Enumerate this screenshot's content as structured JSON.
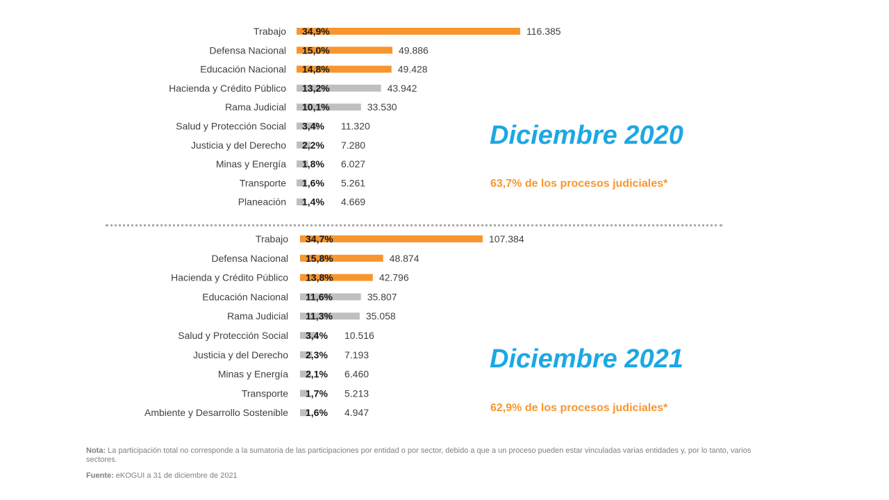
{
  "colors": {
    "highlight": "#f7962f",
    "neutral": "#bfbfbf",
    "title": "#1ca8e3",
    "subtitle": "#f7962f"
  },
  "panels": {
    "p2020": {
      "title": "Diciembre 2020",
      "subtitle": "63,7% de los procesos judiciales*"
    },
    "p2021": {
      "title": "Diciembre 2021",
      "subtitle": "62,9% de los procesos judiciales*"
    }
  },
  "notes": {
    "note_label": "Nota:",
    "note_text": " La participación total no corresponde a la sumatoria de las participaciones por entidad o por sector, debido a que a un proceso pueden estar vinculadas varias entidades y, por lo tanto, varios sectores.",
    "source_label": "Fuente:",
    "source_text": " eKOGUI a 31 de diciembre de 2021"
  },
  "chart_data": [
    {
      "type": "bar",
      "orientation": "horizontal",
      "title": "Diciembre 2020",
      "categories": [
        "Trabajo",
        "Defensa Nacional",
        "Educación Nacional",
        "Hacienda y Crédito Público",
        "Rama Judicial",
        "Salud y Protección Social",
        "Justicia y del Derecho",
        "Minas y Energía",
        "Transporte",
        "Planeación"
      ],
      "values": [
        116385,
        49886,
        49428,
        43942,
        33530,
        11320,
        7280,
        6027,
        5261,
        4669
      ],
      "value_labels": [
        "116.385",
        "49.886",
        "49.428",
        "43.942",
        "33.530",
        "11.320",
        "7.280",
        "6.027",
        "5.261",
        "4.669"
      ],
      "percent_labels": [
        "34,9%",
        "15,0%",
        "14,8%",
        "13,2%",
        "10,1%",
        "3,4%",
        "2,2%",
        "1,8%",
        "1,6%",
        "1,4%"
      ],
      "highlighted": [
        true,
        true,
        true,
        false,
        false,
        false,
        false,
        false,
        false,
        false
      ]
    },
    {
      "type": "bar",
      "orientation": "horizontal",
      "title": "Diciembre 2021",
      "categories": [
        "Trabajo",
        "Defensa Nacional",
        "Hacienda y Crédito Público",
        "Educación Nacional",
        "Rama Judicial",
        "Salud y Protección Social",
        "Justicia y del Derecho",
        "Minas y Energía",
        "Transporte",
        "Ambiente y Desarrollo Sostenible"
      ],
      "values": [
        107384,
        48874,
        42796,
        35807,
        35058,
        10516,
        7193,
        6460,
        5213,
        4947
      ],
      "value_labels": [
        "107.384",
        "48.874",
        "42.796",
        "35.807",
        "35.058",
        "10.516",
        "7.193",
        "6.460",
        "5.213",
        "4.947"
      ],
      "percent_labels": [
        "34,7%",
        "15,8%",
        "13,8%",
        "11,6%",
        "11,3%",
        "3,4%",
        "2,3%",
        "2,1%",
        "1,7%",
        "1,6%"
      ],
      "highlighted": [
        true,
        true,
        true,
        false,
        false,
        false,
        false,
        false,
        false,
        false
      ]
    }
  ]
}
